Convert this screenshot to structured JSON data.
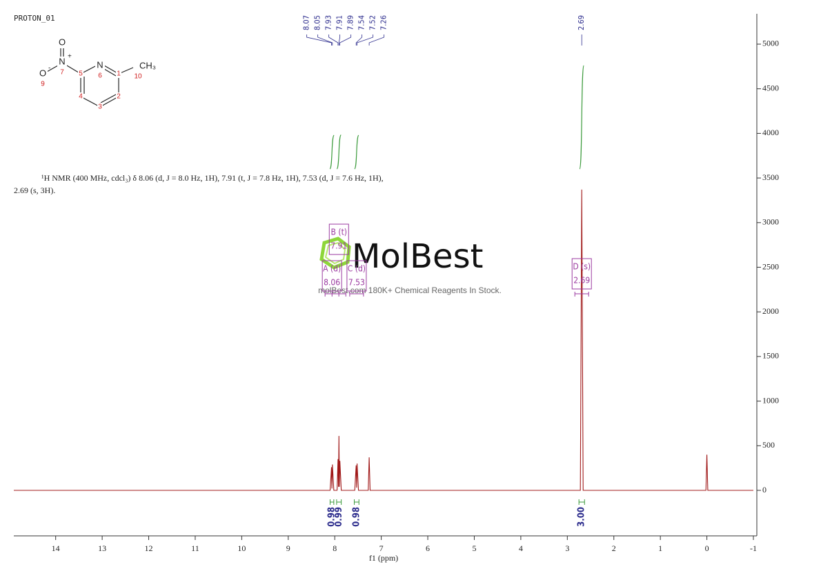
{
  "chart_data": {
    "type": "nmr",
    "title": "PROTON_01",
    "description": [
      "¹H NMR (400 MHz, cdcl₃) δ 8.06 (d, J = 8.0 Hz, 1H), 7.91 (t, J = 7.8 Hz, 1H), 7.53 (d, J = 7.6 Hz, 1H),",
      "2.69 (s, 3H)."
    ],
    "x_label": "f1  (ppm)",
    "color": "#a01818",
    "x": [
      14.9,
      8.1,
      8.07,
      8.06,
      8.05,
      8.02,
      7.95,
      7.93,
      7.92,
      7.91,
      7.9,
      7.89,
      7.86,
      7.57,
      7.54,
      7.53,
      7.52,
      7.49,
      7.28,
      7.26,
      7.24,
      2.72,
      2.69,
      2.66,
      0.02,
      0,
      -0.02,
      -1
    ],
    "values": [
      0,
      0,
      260,
      20,
      290,
      0,
      0,
      350,
      40,
      610,
      40,
      330,
      0,
      0,
      280,
      30,
      300,
      0,
      0,
      370,
      0,
      0,
      3370,
      0,
      0,
      400,
      0,
      0
    ],
    "xlim": [
      14.9,
      -1
    ],
    "xticks": [
      14,
      13,
      12,
      11,
      10,
      9,
      8,
      7,
      6,
      5,
      4,
      3,
      2,
      1,
      0,
      -1
    ],
    "ylim": [
      -510,
      5340
    ],
    "yticks": [
      0,
      500,
      1000,
      1500,
      2000,
      2500,
      3000,
      3500,
      4000,
      4500,
      5000
    ],
    "peak_labels": [
      8.07,
      8.05,
      7.93,
      7.91,
      7.89,
      7.54,
      7.52,
      7.26,
      2.69
    ],
    "multiplets": [
      {
        "label": "A (d)",
        "shift": 8.06
      },
      {
        "label": "B (t)",
        "shift": 7.91
      },
      {
        "label": "C (d)",
        "shift": 7.53
      },
      {
        "label": "D (s)",
        "shift": 2.69
      }
    ],
    "integrals": [
      {
        "range": [
          8.1,
          8.02
        ],
        "value": 0.98
      },
      {
        "range": [
          7.96,
          7.86
        ],
        "value": 0.99
      },
      {
        "range": [
          7.58,
          7.48
        ],
        "value": 0.98
      },
      {
        "range": [
          2.75,
          2.63
        ],
        "value": {
          "value": 3,
          "label": "3.00"
        }
      }
    ]
  },
  "structure": {
    "atoms": [
      {
        "symbol": "O"
      },
      {
        "symbol": "N",
        "charge": "+",
        "number": 7
      },
      {
        "symbol": "O",
        "charge": "-",
        "number": 9
      },
      {
        "symbol": "N",
        "number": 6
      },
      {
        "symbol": "CH₃",
        "number": 10
      },
      {
        "number": 5
      },
      {
        "number": 4
      },
      {
        "number": 3
      },
      {
        "number": 2
      },
      {
        "number": 1
      }
    ]
  },
  "watermark": {
    "brand": "MolBest",
    "tagline": "molBest.com 180K+ Chemical Reagents In Stock."
  }
}
